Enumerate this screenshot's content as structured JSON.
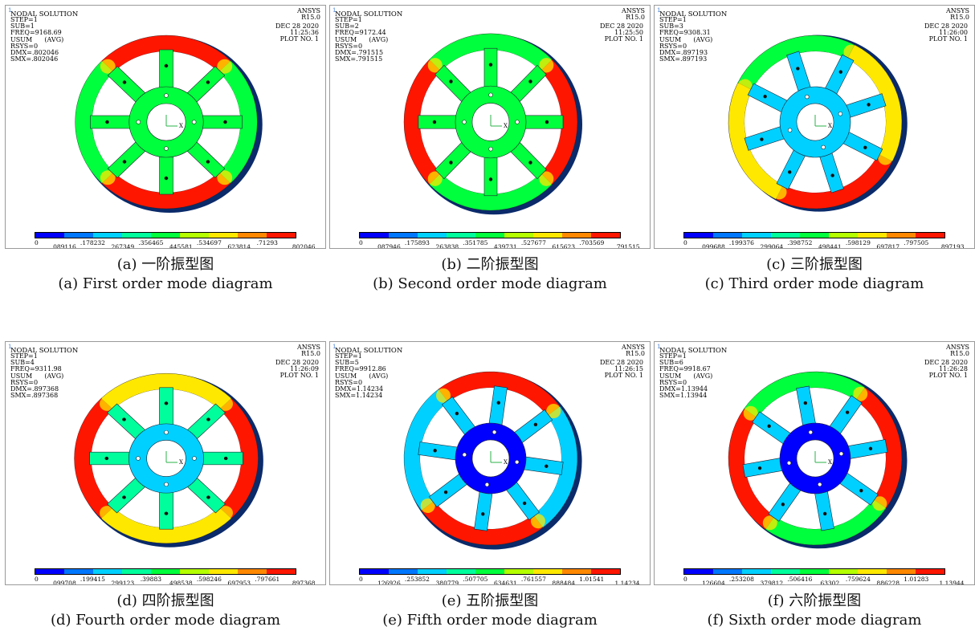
{
  "legend_colors": [
    "#0000ff",
    "#0077ff",
    "#00d0ff",
    "#00ff9c",
    "#00ff3c",
    "#b4ff00",
    "#ffe800",
    "#ff8800",
    "#ff1600"
  ],
  "panels": [
    {
      "tri": "1",
      "title": "NODAL SOLUTION",
      "info": [
        "STEP=1",
        "SUB=1",
        "FREQ=9168.69",
        "USUM      (AVG)",
        "RSYS=0",
        "DMX=.802046",
        "SMX=.802046"
      ],
      "ansys": [
        "ANSYS",
        "R15.0"
      ],
      "date": [
        "DEC 28  2020",
        "11:25:36",
        "PLOT NO.    1"
      ],
      "ticks_low": [
        "0",
        ".178232",
        ".356465",
        ".534697",
        ".71293"
      ],
      "ticks_high": [
        ".089116",
        ".267349",
        ".445581",
        ".623814",
        ".802046"
      ],
      "caption_cn": "(a) 一阶振型图",
      "caption_en": "(a) First order mode diagram"
    },
    {
      "tri": "1",
      "title": "NODAL SOLUTION",
      "info": [
        "STEP=1",
        "SUB=2",
        "FREQ=9172.44",
        "USUM      (AVG)",
        "RSYS=0",
        "DMX=.791515",
        "SMX=.791515"
      ],
      "ansys": [
        "ANSYS",
        "R15.0"
      ],
      "date": [
        "DEC 28  2020",
        "11:25:50",
        "PLOT NO.    1"
      ],
      "ticks_low": [
        "0",
        ".175893",
        ".351785",
        ".527677",
        ".703569"
      ],
      "ticks_high": [
        ".087946",
        ".263838",
        ".439731",
        ".615623",
        ".791515"
      ],
      "caption_cn": "(b) 二阶振型图",
      "caption_en": "(b) Second order mode diagram"
    },
    {
      "tri": "1",
      "title": "NODAL SOLUTION",
      "info": [
        "STEP=1",
        "SUB=3",
        "FREQ=9308.31",
        "USUM      (AVG)",
        "RSYS=0",
        "DMX=.897193",
        "SMX=.897193"
      ],
      "ansys": [
        "ANSYS",
        "R15.0"
      ],
      "date": [
        "DEC 28  2020",
        "11:26:00",
        "PLOT NO.    1"
      ],
      "ticks_low": [
        "0",
        ".199376",
        ".398752",
        ".598129",
        ".797505"
      ],
      "ticks_high": [
        ".099688",
        ".299064",
        ".498441",
        ".697817",
        ".897193"
      ],
      "caption_cn": "(c) 三阶振型图",
      "caption_en": "(c) Third order mode diagram"
    },
    {
      "tri": "1",
      "title": "NODAL SOLUTION",
      "info": [
        "STEP=1",
        "SUB=4",
        "FREQ=9311.98",
        "USUM      (AVG)",
        "RSYS=0",
        "DMX=.897368",
        "SMX=.897368"
      ],
      "ansys": [
        "ANSYS",
        "R15.0"
      ],
      "date": [
        "DEC 28  2020",
        "11:26:09",
        "PLOT NO.    1"
      ],
      "ticks_low": [
        "0",
        ".199415",
        ".39883",
        ".598246",
        ".797661"
      ],
      "ticks_high": [
        ".099708",
        ".299123",
        ".498538",
        ".697953",
        ".897368"
      ],
      "caption_cn": "(d) 四阶振型图",
      "caption_en": "(d) Fourth order mode diagram"
    },
    {
      "tri": "1",
      "title": "NODAL SOLUTION",
      "info": [
        "STEP=1",
        "SUB=5",
        "FREQ=9912.86",
        "USUM      (AVG)",
        "RSYS=0",
        "DMX=1.14234",
        "SMX=1.14234"
      ],
      "ansys": [
        "ANSYS",
        "R15.0"
      ],
      "date": [
        "DEC 28  2020",
        "11:26:15",
        "PLOT NO.    1"
      ],
      "ticks_low": [
        "0",
        ".253852",
        ".507705",
        ".761557",
        "1.01541"
      ],
      "ticks_high": [
        ".126926",
        ".380779",
        ".634631",
        ".888484",
        "1.14234"
      ],
      "caption_cn": "(e) 五阶振型图",
      "caption_en": "(e) Fifth order mode diagram"
    },
    {
      "tri": "1",
      "title": "NODAL SOLUTION",
      "info": [
        "STEP=1",
        "SUB=6",
        "FREQ=9918.67",
        "USUM      (AVG)",
        "RSYS=0",
        "DMX=1.13944",
        "SMX=1.13944"
      ],
      "ansys": [
        "ANSYS",
        "R15.0"
      ],
      "date": [
        "DEC 28  2020",
        "11:26:28",
        "PLOT NO.    1"
      ],
      "ticks_low": [
        "0",
        ".253208",
        ".506416",
        ".759624",
        "1.01283"
      ],
      "ticks_high": [
        ".126604",
        ".379812",
        ".63302",
        ".886228",
        "1.13944"
      ],
      "caption_cn": "(f) 六阶振型图",
      "caption_en": "(f) Sixth order mode diagram"
    }
  ],
  "wheel_colors": {
    "rim_a": [
      "#ff1600",
      "#00ff3c",
      "#ffe800",
      "#00ff3c"
    ],
    "hub": [
      "#00ff3c",
      "#00ff3c",
      "#00d0ff",
      "#00d0ff",
      "#0000ff",
      "#0000ff"
    ]
  }
}
